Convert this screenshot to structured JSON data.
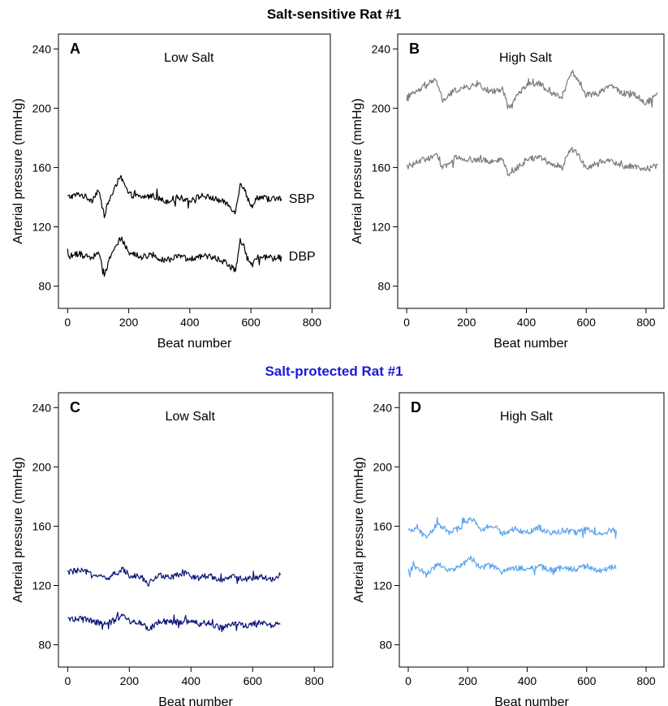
{
  "titles": {
    "top": "Salt-sensitive Rat #1",
    "top_color": "#000000",
    "bottom": "Salt-protected Rat #1",
    "bottom_color": "#1a1ad6"
  },
  "chart_data": [
    {
      "type": "line",
      "panel_label": "A",
      "title": "Low Salt",
      "xlabel": "Beat number",
      "ylabel": "Arterial pressure (mmHg)",
      "xlim": [
        -30,
        860
      ],
      "ylim": [
        65,
        250
      ],
      "xticks": [
        0,
        200,
        400,
        600,
        800
      ],
      "yticks": [
        80,
        120,
        160,
        200,
        240
      ],
      "color": "#000000",
      "series": [
        {
          "name": "SBP",
          "x": [
            0,
            40,
            80,
            100,
            120,
            140,
            160,
            175,
            200,
            240,
            280,
            320,
            360,
            400,
            440,
            480,
            520,
            550,
            565,
            580,
            600,
            620,
            660,
            700
          ],
          "values": [
            140,
            142,
            138,
            145,
            128,
            140,
            148,
            153,
            142,
            140,
            141,
            137,
            140,
            138,
            141,
            139,
            136,
            130,
            150,
            145,
            133,
            140,
            139,
            139
          ]
        },
        {
          "name": "DBP",
          "x": [
            0,
            40,
            80,
            100,
            120,
            140,
            160,
            175,
            200,
            240,
            280,
            320,
            360,
            400,
            440,
            480,
            520,
            550,
            565,
            580,
            600,
            620,
            660,
            700
          ],
          "values": [
            100,
            102,
            99,
            104,
            88,
            100,
            108,
            113,
            102,
            100,
            101,
            97,
            100,
            98,
            101,
            99,
            96,
            90,
            112,
            105,
            93,
            100,
            99,
            100
          ]
        }
      ]
    },
    {
      "type": "line",
      "panel_label": "B",
      "title": "High Salt",
      "xlabel": "Beat number",
      "ylabel": "Arterial pressure (mmHg)",
      "xlim": [
        -30,
        860
      ],
      "ylim": [
        65,
        250
      ],
      "xticks": [
        0,
        200,
        400,
        600,
        800
      ],
      "yticks": [
        80,
        120,
        160,
        200,
        240
      ],
      "color": "#7a7a7a",
      "series": [
        {
          "x": [
            0,
            40,
            80,
            100,
            120,
            160,
            200,
            240,
            280,
            320,
            340,
            360,
            400,
            440,
            480,
            520,
            550,
            580,
            600,
            640,
            680,
            720,
            760,
            800,
            840
          ],
          "values": [
            207,
            212,
            217,
            219,
            205,
            212,
            214,
            216,
            211,
            213,
            200,
            206,
            216,
            217,
            210,
            208,
            225,
            217,
            209,
            210,
            216,
            210,
            210,
            203,
            210
          ]
        },
        {
          "x": [
            0,
            40,
            80,
            100,
            120,
            160,
            200,
            240,
            280,
            320,
            340,
            360,
            400,
            440,
            480,
            520,
            550,
            580,
            600,
            640,
            680,
            720,
            760,
            800,
            840
          ],
          "values": [
            161,
            164,
            167,
            168,
            160,
            166,
            166,
            165,
            164,
            166,
            155,
            158,
            165,
            167,
            163,
            161,
            173,
            167,
            159,
            164,
            165,
            161,
            161,
            158,
            162
          ]
        }
      ]
    },
    {
      "type": "line",
      "panel_label": "C",
      "title": "Low Salt",
      "xlabel": "Beat number",
      "ylabel": "Arterial pressure (mmHg)",
      "xlim": [
        -30,
        860
      ],
      "ylim": [
        65,
        250
      ],
      "xticks": [
        0,
        200,
        400,
        600,
        800
      ],
      "yticks": [
        80,
        120,
        160,
        200,
        240
      ],
      "color": "#0b1478",
      "series": [
        {
          "x": [
            0,
            40,
            80,
            120,
            160,
            180,
            200,
            240,
            260,
            300,
            340,
            380,
            420,
            460,
            500,
            540,
            580,
            620,
            660,
            690
          ],
          "values": [
            129,
            130,
            128,
            125,
            128,
            131,
            127,
            126,
            121,
            127,
            126,
            128,
            125,
            127,
            123,
            126,
            124,
            126,
            124,
            127
          ]
        },
        {
          "x": [
            0,
            40,
            80,
            120,
            160,
            180,
            200,
            240,
            260,
            300,
            340,
            380,
            420,
            460,
            500,
            540,
            580,
            620,
            660,
            690
          ],
          "values": [
            97,
            98,
            96,
            94,
            97,
            100,
            96,
            95,
            90,
            96,
            95,
            96,
            94,
            95,
            91,
            94,
            93,
            95,
            93,
            94
          ]
        }
      ]
    },
    {
      "type": "line",
      "panel_label": "D",
      "title": "High Salt",
      "xlabel": "Beat number",
      "ylabel": "Arterial pressure (mmHg)",
      "xlim": [
        -30,
        860
      ],
      "ylim": [
        65,
        250
      ],
      "xticks": [
        0,
        200,
        400,
        600,
        800
      ],
      "yticks": [
        80,
        120,
        160,
        200,
        240
      ],
      "color": "#5aa4f0",
      "series": [
        {
          "x": [
            0,
            30,
            60,
            100,
            140,
            180,
            210,
            240,
            280,
            320,
            360,
            400,
            440,
            480,
            520,
            560,
            600,
            640,
            680,
            700
          ],
          "values": [
            156,
            159,
            152,
            162,
            155,
            160,
            166,
            158,
            161,
            155,
            158,
            156,
            159,
            155,
            157,
            156,
            158,
            155,
            157,
            157
          ]
        },
        {
          "x": [
            0,
            30,
            60,
            100,
            140,
            180,
            210,
            240,
            280,
            320,
            360,
            400,
            440,
            480,
            520,
            560,
            600,
            640,
            680,
            700
          ],
          "values": [
            130,
            132,
            127,
            135,
            130,
            133,
            139,
            132,
            134,
            129,
            132,
            131,
            133,
            130,
            132,
            131,
            133,
            130,
            132,
            132
          ]
        }
      ]
    }
  ]
}
